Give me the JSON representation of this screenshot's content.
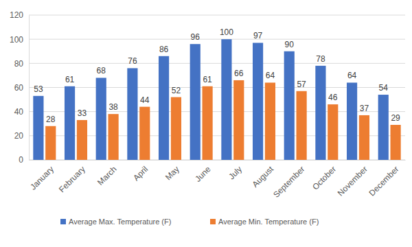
{
  "chart_data": {
    "type": "bar",
    "categories": [
      "January",
      "February",
      "March",
      "April",
      "May",
      "June",
      "July",
      "August",
      "September",
      "October",
      "November",
      "December"
    ],
    "series": [
      {
        "name": "Average Max. Temperature (F)",
        "color": "#4472c4",
        "values": [
          53,
          61,
          68,
          76,
          86,
          96,
          100,
          97,
          90,
          78,
          64,
          54
        ]
      },
      {
        "name": "Average Min. Temperature (F)",
        "color": "#ed7d31",
        "values": [
          28,
          33,
          38,
          44,
          52,
          61,
          66,
          64,
          57,
          46,
          37,
          29
        ]
      }
    ],
    "ylim": [
      0,
      120
    ],
    "yticks": [
      0,
      20,
      40,
      60,
      80,
      100,
      120
    ],
    "grid": true,
    "data_labels": true,
    "legend": "bottom"
  }
}
